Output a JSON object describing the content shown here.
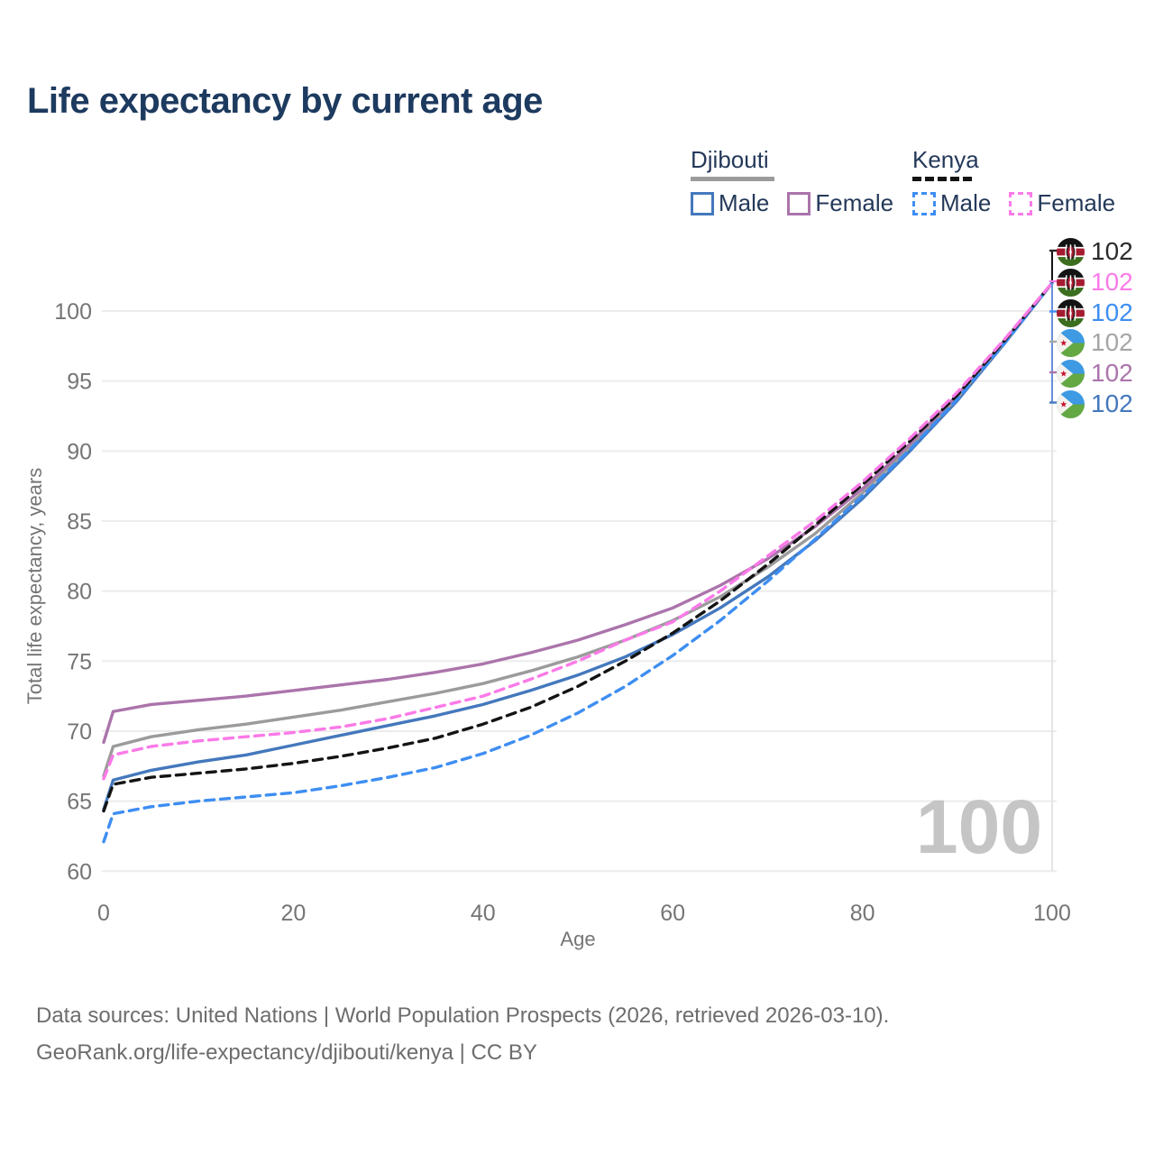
{
  "title": "Life expectancy by current age",
  "legend": {
    "groups": [
      {
        "label": "Djibouti",
        "line_style": "solid",
        "items": [
          {
            "label": "Male",
            "color": "#4478bd"
          },
          {
            "label": "Female",
            "color": "#ab74ab"
          }
        ]
      },
      {
        "label": "Kenya",
        "line_style": "dashed",
        "items": [
          {
            "label": "Male",
            "color": "#3e8ef2"
          },
          {
            "label": "Female",
            "color": "#fb7ae8"
          }
        ]
      }
    ]
  },
  "chart_data": {
    "type": "line",
    "title": "Life expectancy by current age",
    "xlabel": "Age",
    "ylabel": "Total life expectancy, years",
    "xlim": [
      0,
      100
    ],
    "ylim": [
      60,
      102
    ],
    "x_ticks": [
      0,
      20,
      40,
      60,
      80,
      100
    ],
    "y_ticks": [
      60,
      65,
      70,
      75,
      80,
      85,
      90,
      95,
      100
    ],
    "grid": "horizontal-only",
    "gridline_color": "#ececec",
    "axis_text_color": "#757575",
    "watermark": "100",
    "watermark_color": "#c5c5c5",
    "x": [
      0,
      1,
      5,
      10,
      15,
      20,
      25,
      30,
      35,
      40,
      45,
      50,
      55,
      60,
      65,
      70,
      75,
      80,
      85,
      90,
      95,
      100
    ],
    "series": [
      {
        "name": "Djibouti Male",
        "country": "Djibouti",
        "sex": "Male",
        "color": "#4478bd",
        "dash": false,
        "values": [
          64.4,
          66.5,
          67.2,
          67.8,
          68.3,
          69.0,
          69.7,
          70.4,
          71.1,
          71.9,
          72.9,
          74.0,
          75.3,
          76.9,
          78.8,
          81.0,
          83.6,
          86.6,
          90.0,
          93.6,
          97.7,
          102
        ]
      },
      {
        "name": "Djibouti Total",
        "country": "Djibouti",
        "sex": "Total",
        "color": "#9b9b9b",
        "dash": false,
        "values": [
          66.8,
          68.9,
          69.6,
          70.1,
          70.5,
          71.0,
          71.5,
          72.1,
          72.7,
          73.4,
          74.3,
          75.3,
          76.5,
          77.9,
          79.6,
          81.7,
          84.1,
          87.0,
          90.3,
          93.8,
          97.8,
          102
        ]
      },
      {
        "name": "Djibouti Female",
        "country": "Djibouti",
        "sex": "Female",
        "color": "#ab74ab",
        "dash": false,
        "values": [
          69.2,
          71.4,
          71.9,
          72.2,
          72.5,
          72.9,
          73.3,
          73.7,
          74.2,
          74.8,
          75.6,
          76.5,
          77.6,
          78.8,
          80.4,
          82.3,
          84.6,
          87.3,
          90.5,
          94.0,
          97.9,
          102
        ]
      },
      {
        "name": "Kenya Male",
        "country": "Kenya",
        "sex": "Male",
        "color": "#3e8ef2",
        "dash": true,
        "values": [
          62.1,
          64.1,
          64.6,
          65.0,
          65.3,
          65.6,
          66.1,
          66.7,
          67.4,
          68.4,
          69.7,
          71.3,
          73.2,
          75.4,
          77.9,
          80.7,
          83.7,
          86.8,
          90.1,
          93.7,
          97.7,
          102
        ]
      },
      {
        "name": "Kenya Total",
        "country": "Kenya",
        "sex": "Total",
        "color": "#141414",
        "dash": true,
        "values": [
          64.3,
          66.2,
          66.7,
          67.0,
          67.3,
          67.7,
          68.2,
          68.8,
          69.5,
          70.5,
          71.7,
          73.2,
          75.0,
          77.0,
          79.3,
          81.9,
          84.7,
          87.6,
          90.7,
          94.0,
          97.9,
          102
        ]
      },
      {
        "name": "Kenya Female",
        "country": "Kenya",
        "sex": "Female",
        "color": "#fb7ae8",
        "dash": true,
        "values": [
          66.6,
          68.3,
          68.9,
          69.3,
          69.6,
          69.9,
          70.3,
          70.9,
          71.7,
          72.5,
          73.7,
          75.0,
          76.5,
          77.8,
          80.0,
          82.5,
          85.0,
          87.8,
          90.9,
          94.2,
          98.0,
          102
        ]
      }
    ]
  },
  "end_labels": [
    {
      "flag": "Kenya",
      "series": "Kenya Total",
      "value": "102",
      "color": "#2b2b2b"
    },
    {
      "flag": "Kenya",
      "series": "Kenya Female",
      "value": "102",
      "color": "#fb7ae8"
    },
    {
      "flag": "Kenya",
      "series": "Kenya Male",
      "value": "102",
      "color": "#3e8ef2"
    },
    {
      "flag": "Djibouti",
      "series": "Djibouti Total",
      "value": "102",
      "color": "#a6a6a6"
    },
    {
      "flag": "Djibouti",
      "series": "Djibouti Female",
      "value": "102",
      "color": "#ab74ab"
    },
    {
      "flag": "Djibouti",
      "series": "Djibouti Male",
      "value": "102",
      "color": "#4478bd"
    }
  ],
  "footer": {
    "line1": "Data sources: United Nations | World Population Prospects (2026, retrieved 2026-03-10).",
    "line2": "GeoRank.org/life-expectancy/djibouti/kenya | CC BY"
  }
}
